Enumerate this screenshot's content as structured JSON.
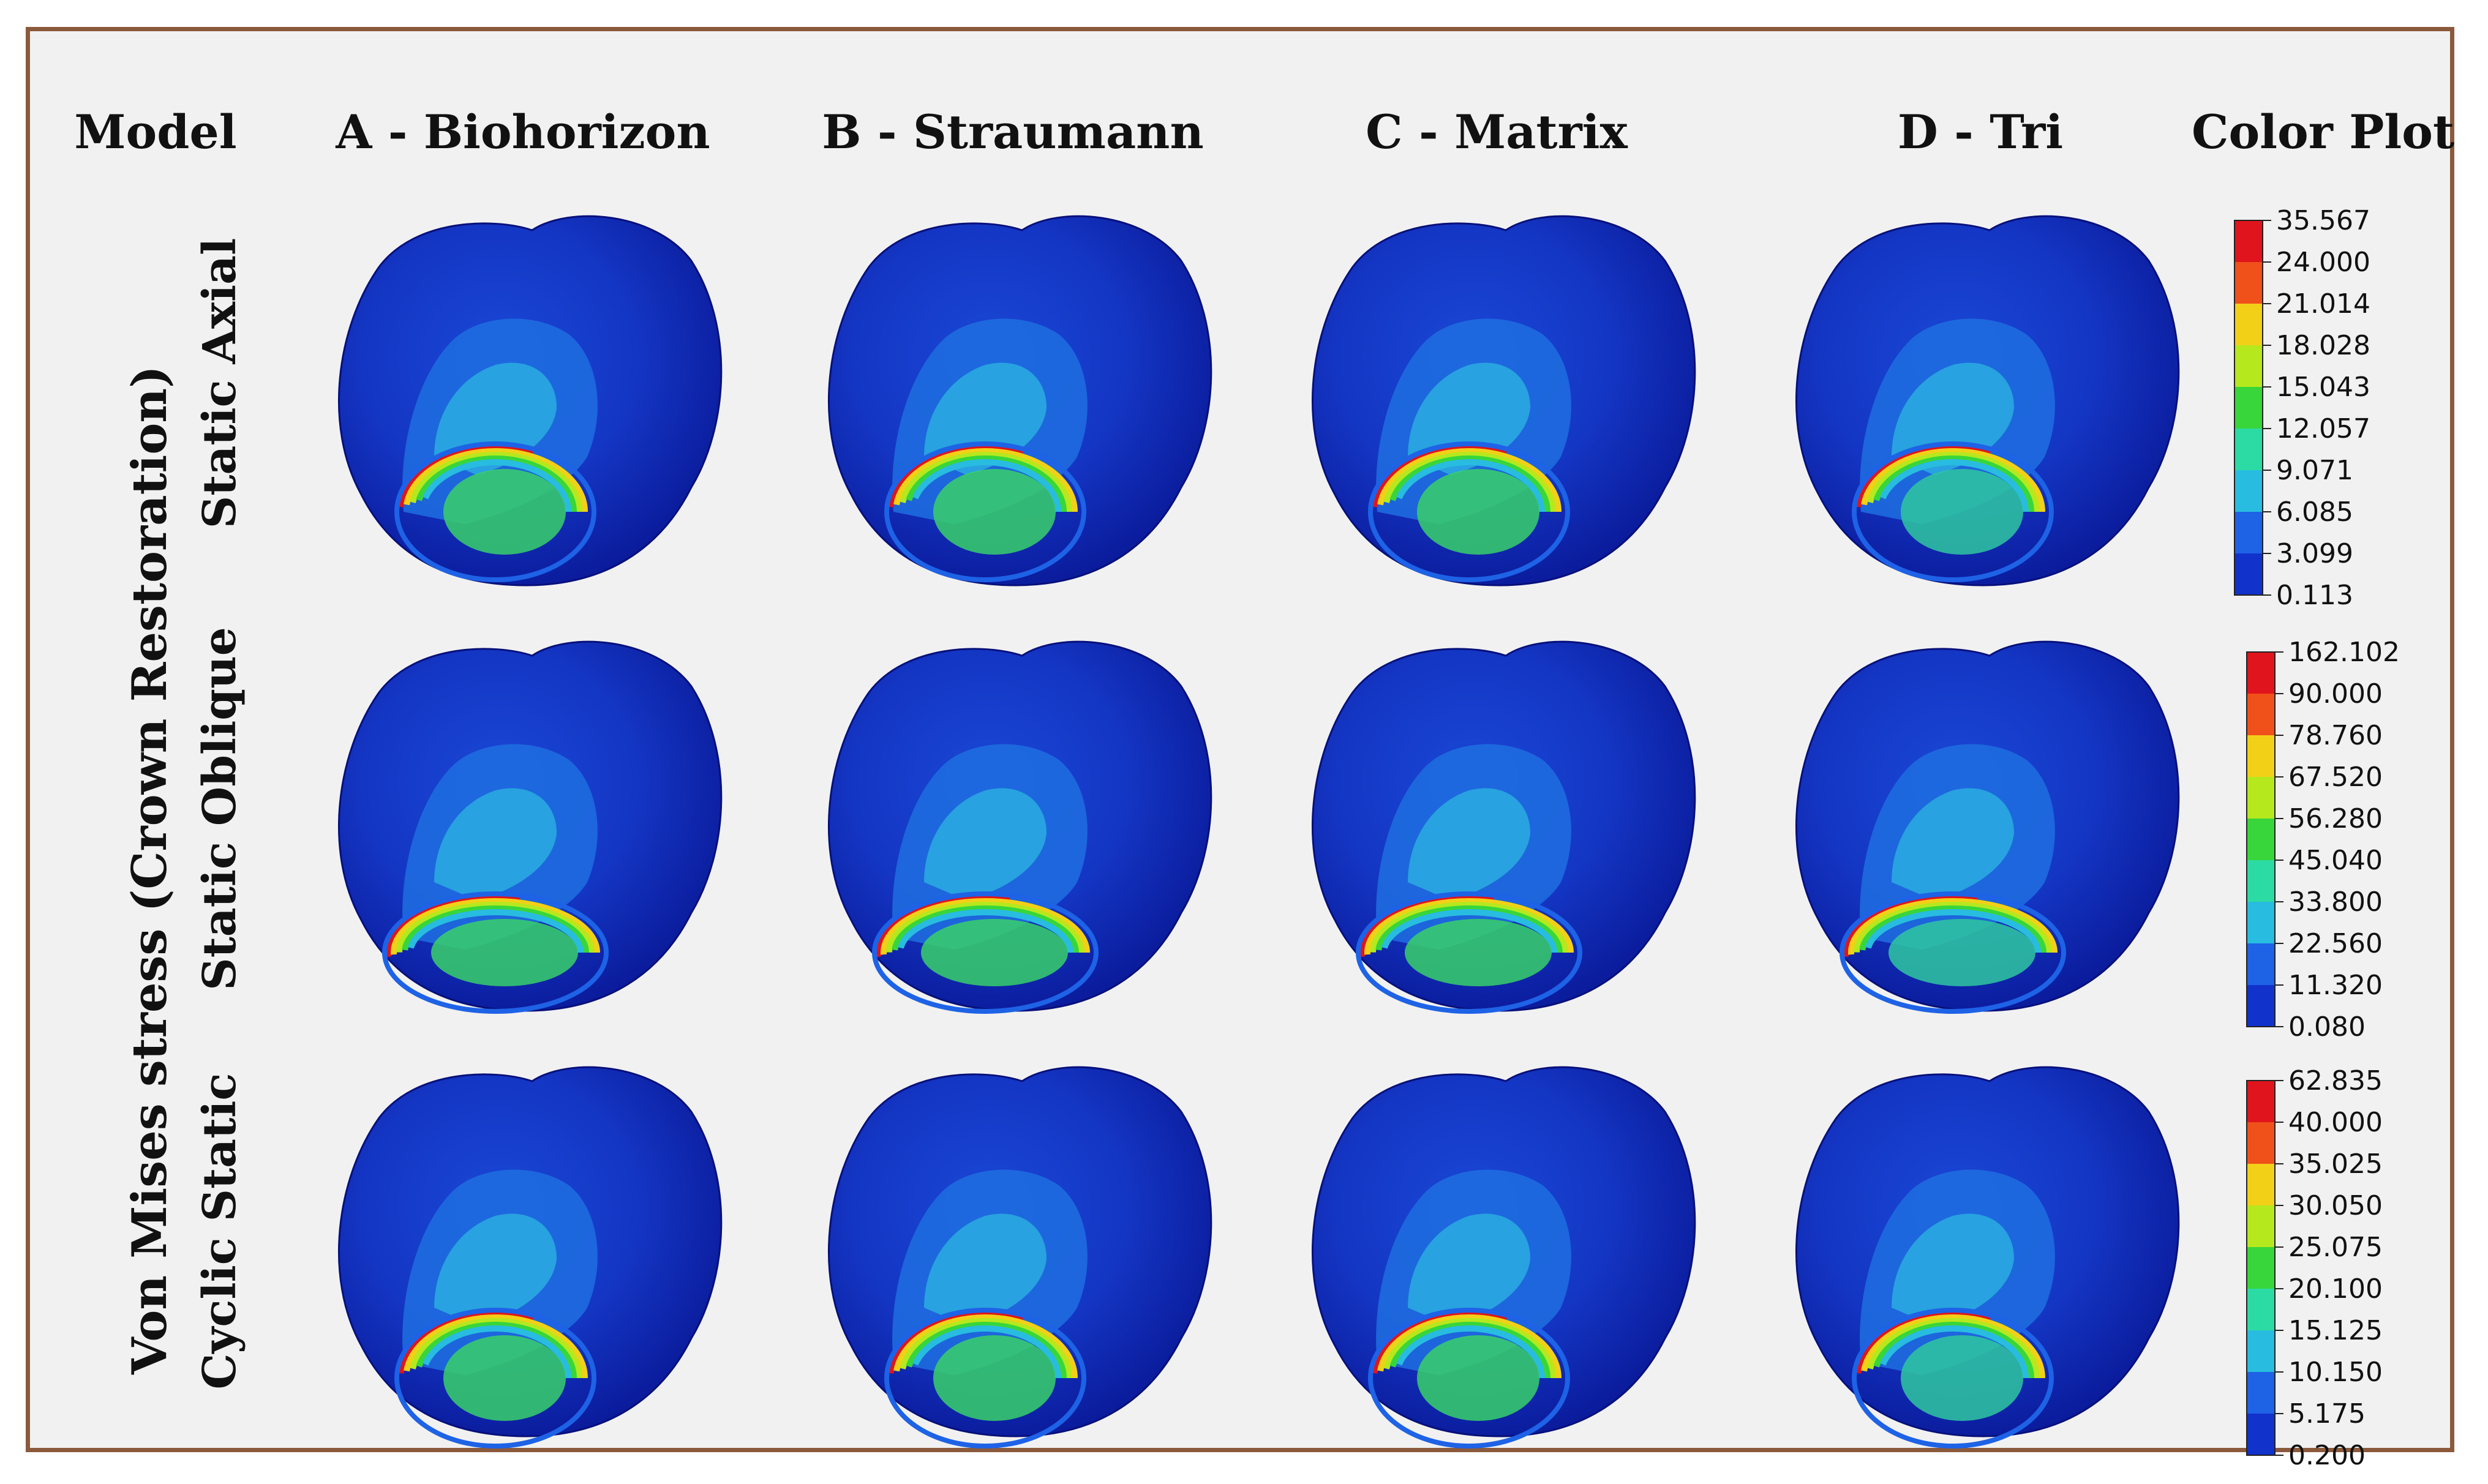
{
  "header": {
    "model": "Model",
    "col_a": "A - Biohorizon",
    "col_b": "B - Straumann",
    "col_c": "C - Matrix",
    "col_d": "D - Tri",
    "color_plot": "Color Plot"
  },
  "side_title": "Von Mises stress (Crown Restoration)",
  "rows": {
    "r1": "Static Axial",
    "r2": "Static Oblique",
    "r3": "Cyclic Static"
  },
  "legends": [
    {
      "ticks": [
        "35.567",
        "24.000",
        "21.014",
        "18.028",
        "15.043",
        "12.057",
        "9.071",
        "6.085",
        "3.099",
        "0.113"
      ]
    },
    {
      "ticks": [
        "162.102",
        "90.000",
        "78.760",
        "67.520",
        "56.280",
        "45.040",
        "33.800",
        "22.560",
        "11.320",
        "0.080"
      ]
    },
    {
      "ticks": [
        "62.835",
        "40.000",
        "35.025",
        "30.050",
        "25.075",
        "20.100",
        "15.125",
        "10.150",
        "5.175",
        "0.200"
      ]
    }
  ],
  "colors": {
    "frame": "#8B5A3C",
    "background": "#f1f1f1",
    "scale": [
      "#e0141c",
      "#f0501a",
      "#f2d018",
      "#b6e81e",
      "#38d63a",
      "#2cdba4",
      "#28bce0",
      "#1e62e6",
      "#1232cc",
      "#060ea8"
    ],
    "crown_dark": "#0a1a9a",
    "crown_mid": "#1a47d6",
    "crown_light": "#2aa8e0"
  }
}
